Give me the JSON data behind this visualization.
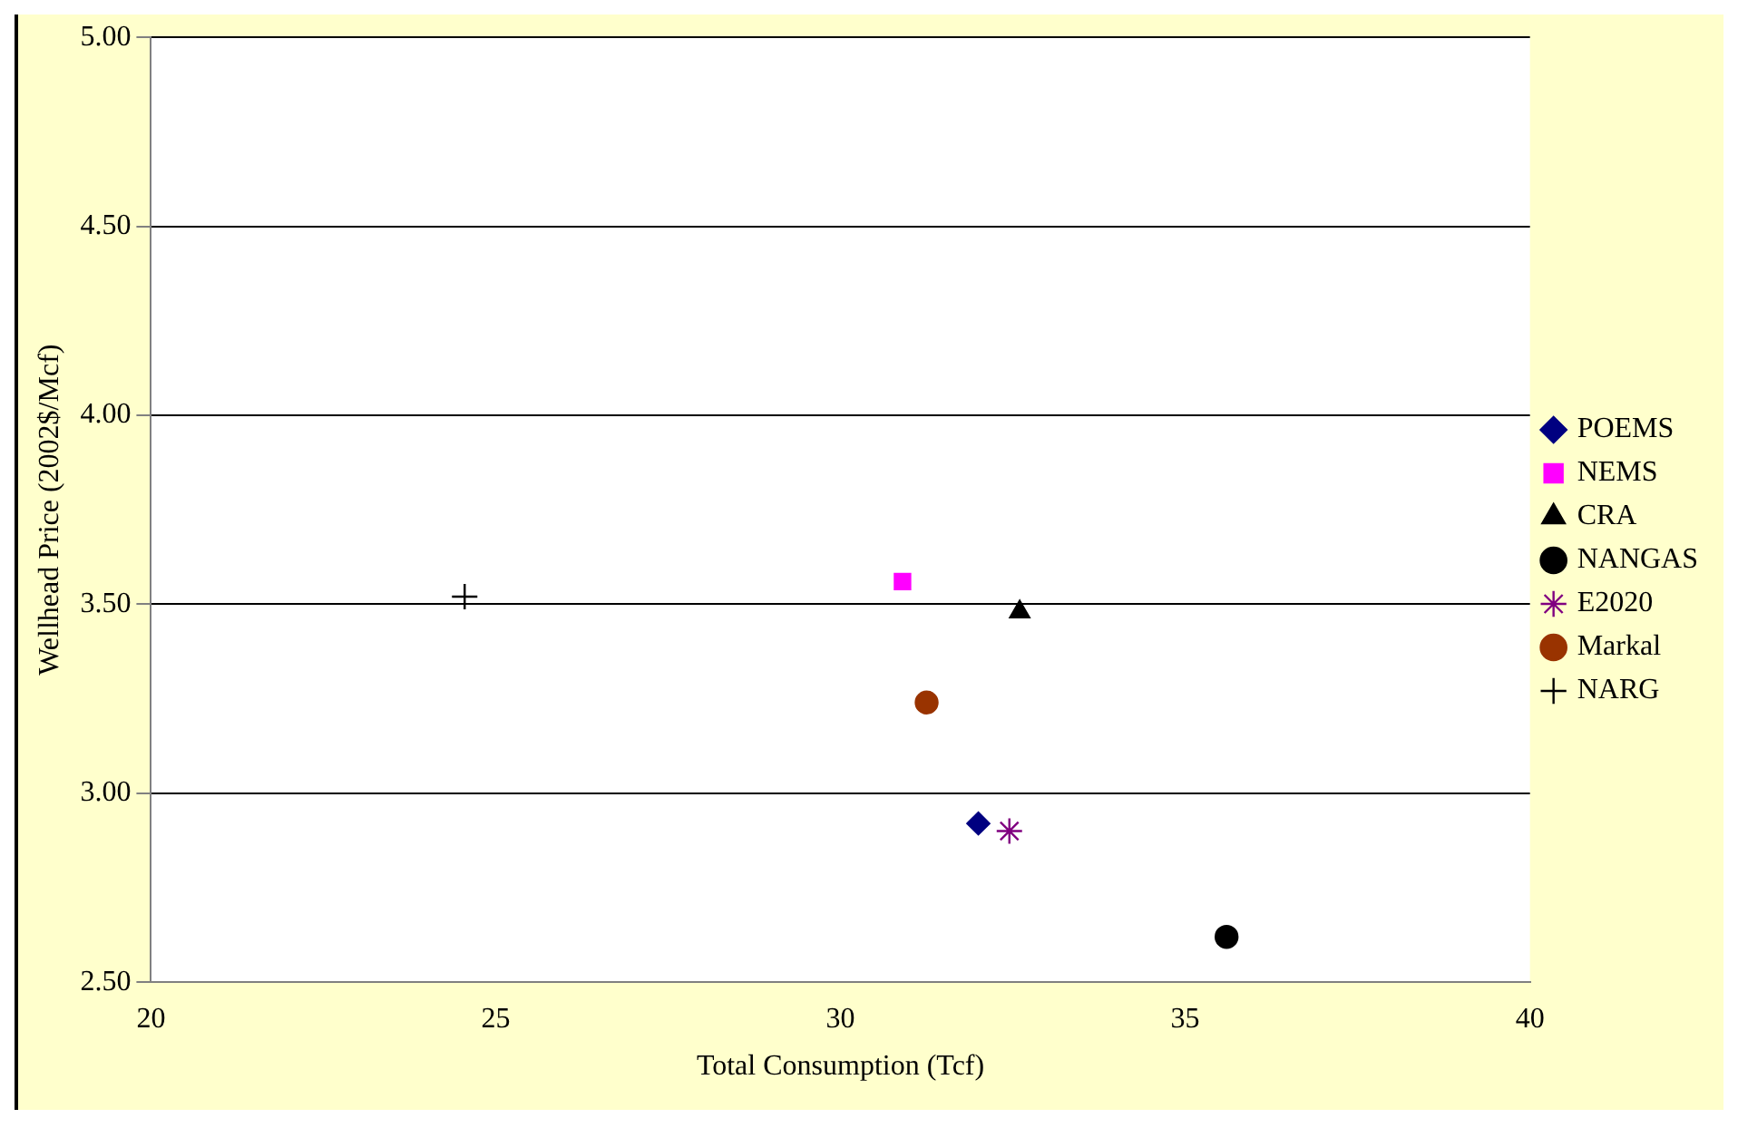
{
  "chart_data": {
    "type": "scatter",
    "xlabel": "Total Consumption (Tcf)",
    "ylabel": "Wellhead Price (2002$/Mcf)",
    "xlim": [
      20,
      40
    ],
    "xticks": [
      20,
      25,
      30,
      35,
      40
    ],
    "ylim": [
      2.5,
      5
    ],
    "yticks": [
      {
        "value": 2.5,
        "label": "2.50"
      },
      {
        "value": 3,
        "label": "3.00"
      },
      {
        "value": 3.5,
        "label": "3.50"
      },
      {
        "value": 4,
        "label": "4.00"
      },
      {
        "value": 4.5,
        "label": "4.50"
      },
      {
        "value": 5,
        "label": "5.00"
      }
    ],
    "grid": "y",
    "legend": "right",
    "series": [
      {
        "name": "POEMS",
        "color": "#000080",
        "marker": "diamond",
        "x": [
          32.0
        ],
        "values": [
          2.92
        ]
      },
      {
        "name": "NEMS",
        "color": "#ff00ff",
        "marker": "square",
        "x": [
          30.9
        ],
        "values": [
          3.56
        ]
      },
      {
        "name": "CRA",
        "color": "#000000",
        "marker": "triangle",
        "x": [
          32.6
        ],
        "values": [
          3.48
        ]
      },
      {
        "name": "NANGAS",
        "color": "#000000",
        "marker": "circle",
        "x": [
          35.6
        ],
        "values": [
          2.62
        ]
      },
      {
        "name": "E2020",
        "color": "#800080",
        "marker": "cross",
        "x": [
          32.45
        ],
        "values": [
          2.9
        ]
      },
      {
        "name": "Markal",
        "color": "#993300",
        "marker": "circle",
        "x": [
          31.25
        ],
        "values": [
          3.24
        ]
      },
      {
        "name": "NARG",
        "color": "#000000",
        "marker": "cross",
        "x": [
          24.55
        ],
        "values": [
          3.52
        ]
      }
    ]
  }
}
